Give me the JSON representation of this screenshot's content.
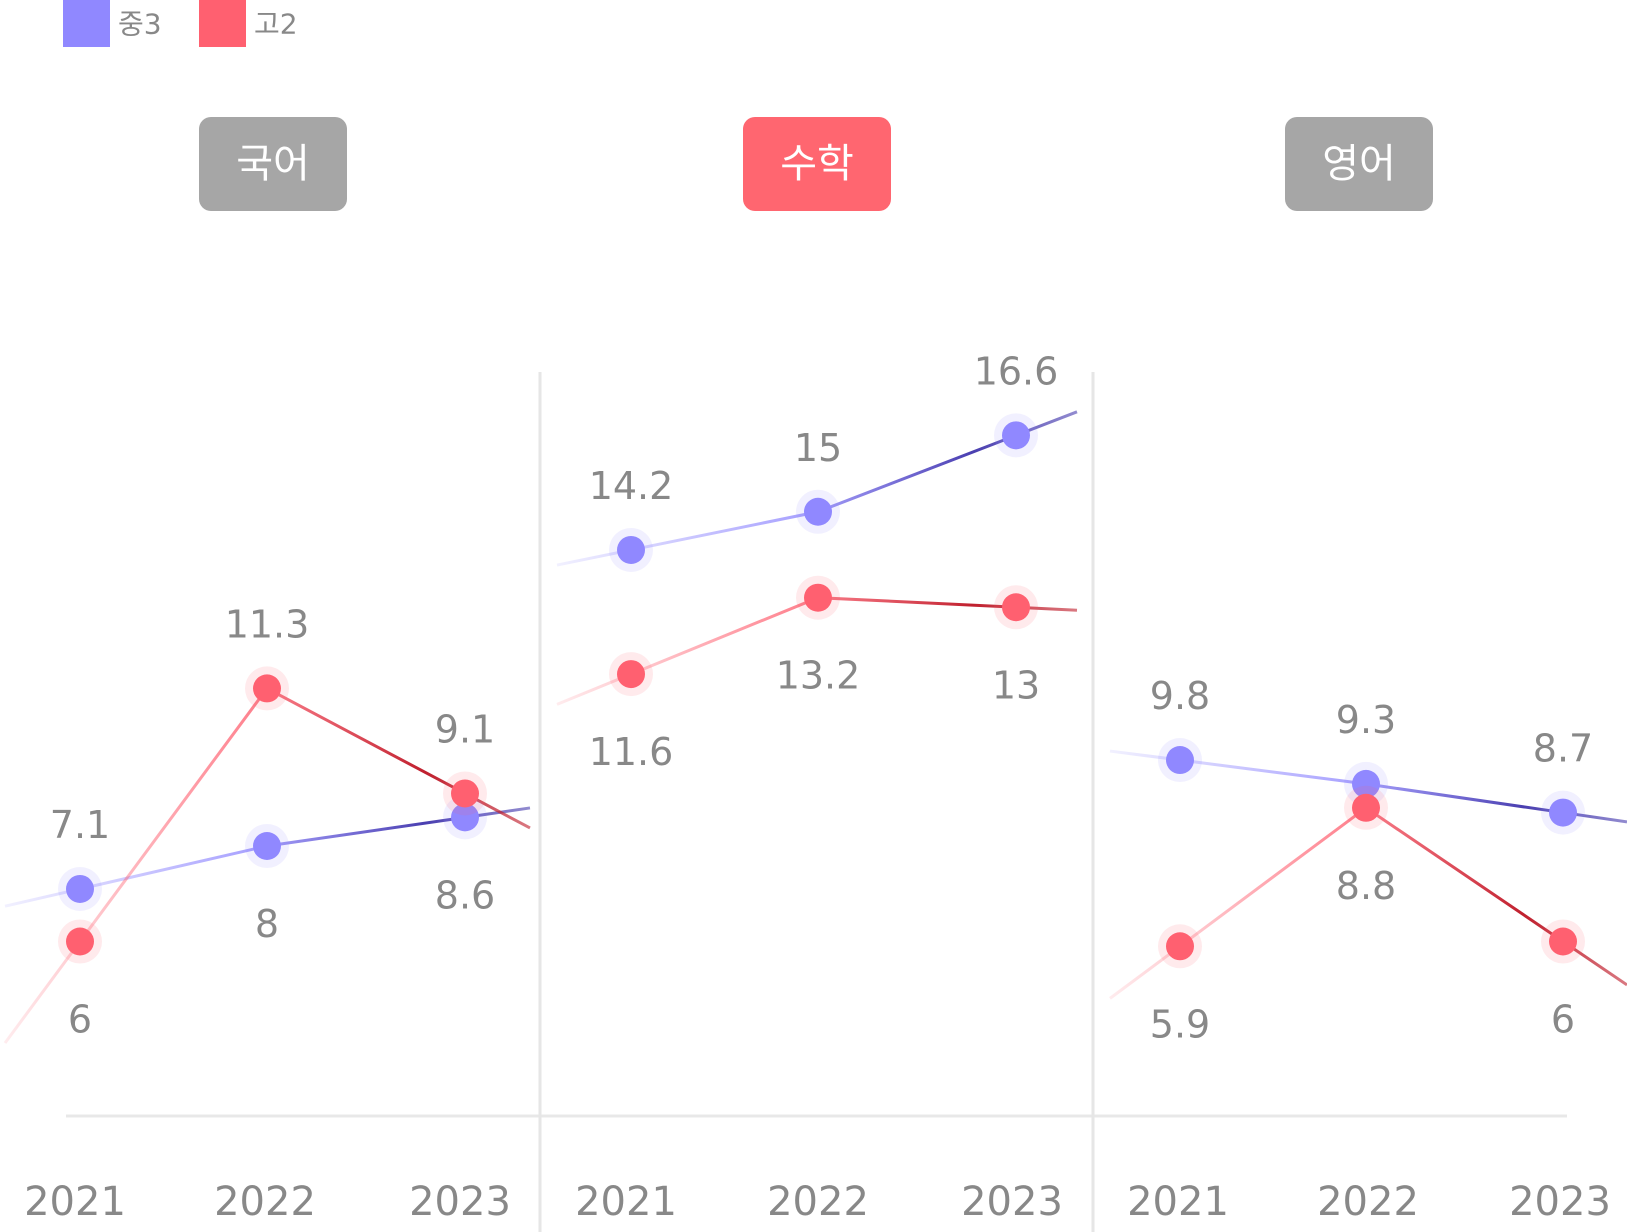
{
  "chart_data": {
    "type": "line",
    "legend": [
      {
        "name": "중3",
        "color": "#9088ff"
      },
      {
        "name": "고2",
        "color": "#ff6070"
      }
    ],
    "legend_position": "top-left",
    "grid": false,
    "highlight_color": "#ff6670",
    "badge_default_color": "#a6a6a6",
    "panels": [
      {
        "subject": "국어",
        "highlighted": false,
        "x": [
          "2021",
          "2022",
          "2023"
        ],
        "series": [
          {
            "name": "중3",
            "values": [
              7.1,
              8,
              8.6
            ]
          },
          {
            "name": "고2",
            "values": [
              6,
              11.3,
              9.1
            ]
          }
        ]
      },
      {
        "subject": "수학",
        "highlighted": true,
        "x": [
          "2021",
          "2022",
          "2023"
        ],
        "series": [
          {
            "name": "중3",
            "values": [
              14.2,
              15,
              16.6
            ]
          },
          {
            "name": "고2",
            "values": [
              11.6,
              13.2,
              13
            ]
          }
        ]
      },
      {
        "subject": "영어",
        "highlighted": false,
        "x": [
          "2021",
          "2022",
          "2023"
        ],
        "series": [
          {
            "name": "중3",
            "values": [
              9.8,
              9.3,
              8.7
            ]
          },
          {
            "name": "고2",
            "values": [
              5.9,
              8.8,
              6
            ]
          }
        ]
      }
    ]
  }
}
